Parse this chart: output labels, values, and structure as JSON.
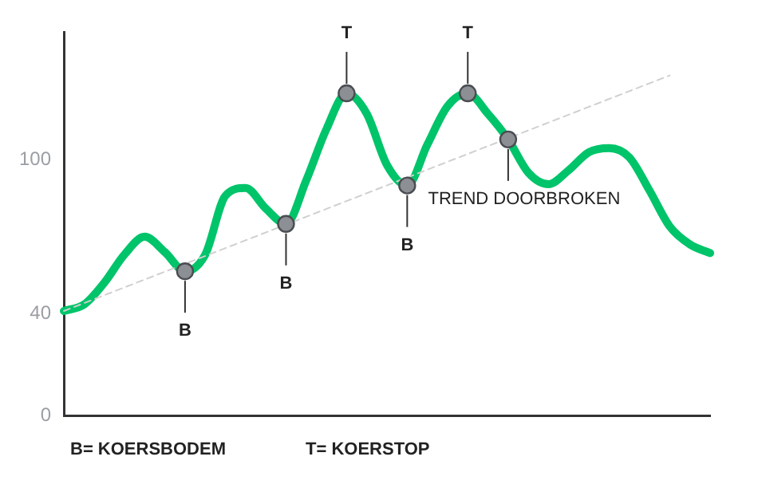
{
  "chart_data": {
    "type": "line",
    "categories": [
      null,
      null,
      null,
      null,
      null,
      null,
      null,
      null,
      null,
      null,
      null,
      null,
      null,
      null,
      null,
      null,
      null,
      null,
      null,
      null,
      null,
      null,
      null,
      null,
      null,
      null,
      null,
      null,
      null,
      null,
      null,
      null,
      null
    ],
    "series": [
      {
        "color": "#00c46a",
        "values": [
          41,
          43.5,
          52,
          63,
          70,
          64,
          56.5,
          63,
          86,
          89,
          81,
          75,
          92,
          112,
          126,
          118,
          98,
          90,
          106,
          121,
          126,
          118,
          108,
          95,
          90.5,
          96,
          103,
          104.6,
          101,
          88,
          74,
          67,
          63.6
        ]
      },
      {
        "type": "line",
        "color": "#d0d0d0",
        "line_style": "dashed",
        "values": [
          41,
          null,
          null,
          null,
          null,
          null,
          null,
          null,
          null,
          null,
          null,
          null,
          null,
          null,
          null,
          null,
          null,
          null,
          null,
          null,
          null,
          null,
          null,
          null,
          null,
          null,
          null,
          null,
          null,
          null,
          133,
          null,
          null
        ]
      },
      {
        "type": "scatter",
        "color": "#8c8f93",
        "marker": "circle",
        "values": [
          null,
          null,
          null,
          null,
          null,
          null,
          56.5,
          null,
          null,
          null,
          null,
          75,
          null,
          null,
          126,
          null,
          null,
          90,
          null,
          null,
          126,
          null,
          108,
          null,
          null,
          null,
          null,
          null,
          null,
          null,
          null,
          null,
          null
        ]
      }
    ],
    "ylim": [
      0,
      150
    ],
    "yticks": [
      0,
      40,
      100
    ],
    "grid": false,
    "legend": false,
    "marker": "none",
    "line_style": "solid",
    "annotations": [
      "B",
      "B",
      "T",
      "B",
      "T",
      "TREND DOORBROKEN",
      "B= KOERSBODEM",
      "T= KOERSTOP"
    ]
  }
}
